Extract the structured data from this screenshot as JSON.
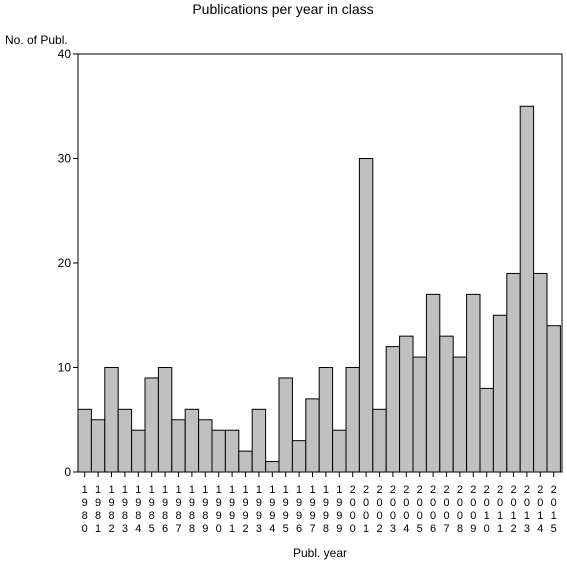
{
  "chart_data": {
    "type": "bar",
    "title": "Publications per year in class",
    "ylabel": "No. of Publ.",
    "xlabel": "Publ. year",
    "ylim": [
      0,
      40
    ],
    "yticks": [
      0,
      10,
      20,
      30,
      40
    ],
    "grid": false,
    "bar_color": "#c0c0c0",
    "categories": [
      "1980",
      "1981",
      "1982",
      "1983",
      "1984",
      "1985",
      "1986",
      "1987",
      "1988",
      "1989",
      "1990",
      "1991",
      "1992",
      "1993",
      "1994",
      "1995",
      "1996",
      "1997",
      "1998",
      "1999",
      "2000",
      "2001",
      "2002",
      "2003",
      "2004",
      "2005",
      "2006",
      "2007",
      "2008",
      "2009",
      "2010",
      "2011",
      "2012",
      "2013",
      "2014",
      "2015"
    ],
    "values": [
      6,
      5,
      10,
      6,
      4,
      9,
      10,
      5,
      6,
      5,
      4,
      4,
      2,
      6,
      1,
      9,
      3,
      7,
      10,
      4,
      10,
      30,
      6,
      12,
      13,
      11,
      17,
      13,
      11,
      17,
      8,
      15,
      19,
      35,
      19,
      14
    ]
  }
}
